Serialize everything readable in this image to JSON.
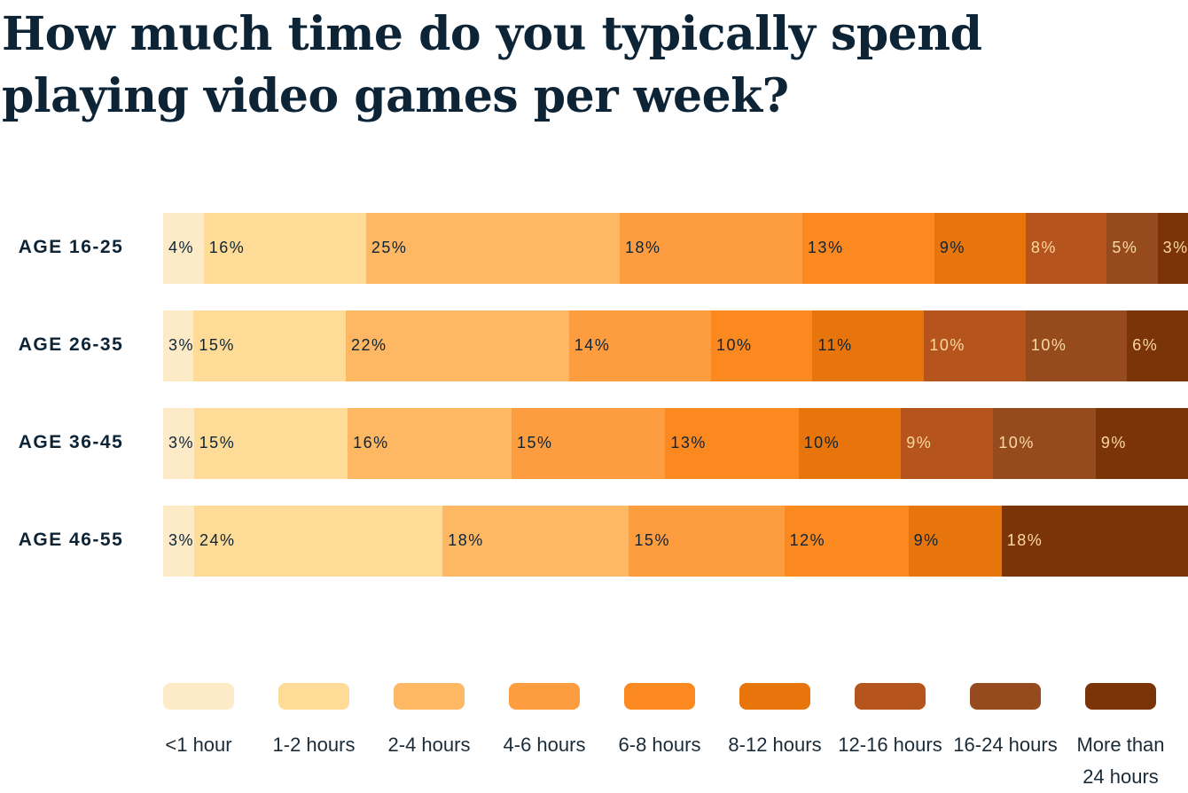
{
  "chart_data": {
    "type": "bar",
    "orientation": "horizontal",
    "stacked": true,
    "title": "How much time do you typically spend playing video games per week?",
    "categories": [
      "AGE 16-25",
      "AGE 26-35",
      "AGE 36-45",
      "AGE 46-55"
    ],
    "unit": "%",
    "legend_position": "bottom",
    "grid": false,
    "series": [
      {
        "name": "<1 hour",
        "color": "#FDEBC8",
        "label_color": "#0d2436",
        "values": [
          4,
          3,
          3,
          3
        ]
      },
      {
        "name": "1-2 hours",
        "color": "#FEDC98",
        "label_color": "#0d2436",
        "values": [
          16,
          15,
          15,
          24
        ]
      },
      {
        "name": "2-4 hours",
        "color": "#FEB762",
        "label_color": "#0d2436",
        "values": [
          25,
          22,
          16,
          18
        ]
      },
      {
        "name": "4-6 hours",
        "color": "#FD9D40",
        "label_color": "#0d2436",
        "values": [
          18,
          14,
          15,
          15
        ]
      },
      {
        "name": "6-8 hours",
        "color": "#FC8820",
        "label_color": "#0d2436",
        "values": [
          13,
          10,
          13,
          12
        ]
      },
      {
        "name": "8-12 hours",
        "color": "#E8750C",
        "label_color": "#0d2436",
        "values": [
          9,
          11,
          10,
          9
        ]
      },
      {
        "name": "12-16 hours",
        "color": "#B5541D",
        "label_color": "#FCD9A0",
        "values": [
          8,
          10,
          9,
          0
        ]
      },
      {
        "name": "16-24 hours",
        "color": "#954B1E",
        "label_color": "#FCD9A0",
        "values": [
          5,
          10,
          10,
          0
        ]
      },
      {
        "name": "More than 24 hours",
        "color": "#7A3408",
        "label_color": "#FCD9A0",
        "values": [
          3,
          6,
          9,
          18
        ]
      }
    ]
  }
}
